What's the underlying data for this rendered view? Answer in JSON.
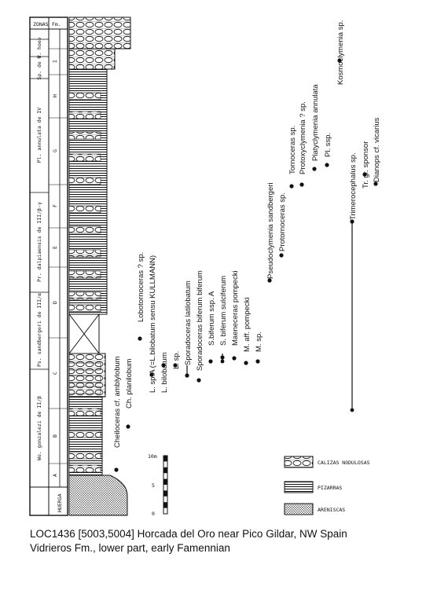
{
  "column": {
    "zonas_header": "ZONAS",
    "fm_header": "Fm.",
    "base_label": "HUERGA",
    "zones": [
      "Wo. gonzalezi de II/β",
      "Ps. sandbergeri de III/α",
      "Pr. dalpiaensis de III/β-γ",
      "Pl. annulata de IV",
      "Sp. de V",
      "G. hoev"
    ],
    "unit_letters": [
      "A",
      "B",
      "C",
      "D",
      "E",
      "F",
      "G",
      "H",
      "I"
    ]
  },
  "scale": {
    "top_label": "10m",
    "mid_label": "5",
    "bottom_label": "0"
  },
  "taxa": [
    "Cheiloceras cf. amblylobum",
    "Ch. planilobum",
    "Lobotornoceras ? sp.",
    "L. sp.A  (=L.bilobatum sensu KULLMANN)",
    "L. bilobatum",
    "L. sp.",
    "Sporadoceras latilobatum",
    "Sporadoceras biferum biferum",
    "S.biferum ssp. A",
    "S. biferum sulciferum",
    "Maeneceras pompecki",
    "M. aff. pompecki",
    "M. sp.",
    "Pseudoclymenia sandbergeri",
    "Protornoceras sp.",
    "Tornoceras sp.",
    "Protoxyclymenia ? sp.",
    "Platyclymenia annulata",
    "Pl. ssp.",
    "Kosmoclymenia sp.",
    "Trimerocephalus sp.",
    "Tr. gr. sponsor",
    "Dianops cf. vicarius"
  ],
  "legend": [
    {
      "label": "CALIZAS NODULOSAS",
      "pattern": "nodular"
    },
    {
      "label": "PIZARRAS",
      "pattern": "shale"
    },
    {
      "label": "ARENISCAS",
      "pattern": "sand"
    }
  ],
  "caption": {
    "line1": "LOC1436 [5003,5004] Horcada del Oro near Pico Gildar, NW Spain",
    "line2": "Vidrieros Fm., lower part, early Famennian"
  },
  "colors": {
    "ink": "#111111",
    "background": "#ffffff"
  }
}
